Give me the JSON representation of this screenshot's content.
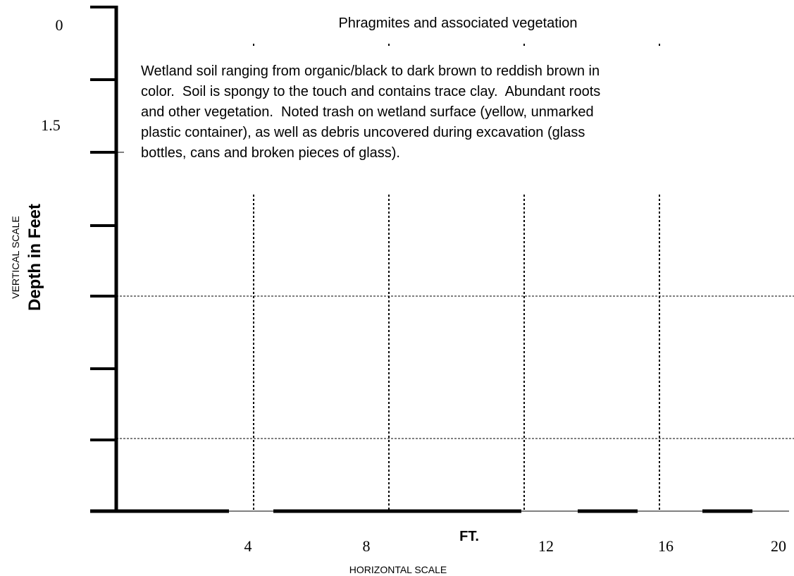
{
  "vertical_scale": {
    "title": "VERTICAL SCALE",
    "label": "Depth in Feet",
    "ticks": [
      "0",
      "1.5"
    ]
  },
  "horizontal_scale": {
    "title": "HORIZONTAL SCALE",
    "unit": "FT.",
    "ticks": [
      "4",
      "8",
      "12",
      "16",
      "20"
    ]
  },
  "surface_label": "Phragmites and associated vegetation",
  "description": [
    "Wetland soil ranging from organic/black to dark brown to reddish brown in",
    "color.  Soil is spongy to the touch and contains trace clay.  Abundant roots",
    "and other vegetation.  Noted trash on wetland surface (yellow, unmarked",
    "plastic container), as well as debris uncovered during excavation (glass",
    "bottles, cans and broken pieces of glass)."
  ]
}
